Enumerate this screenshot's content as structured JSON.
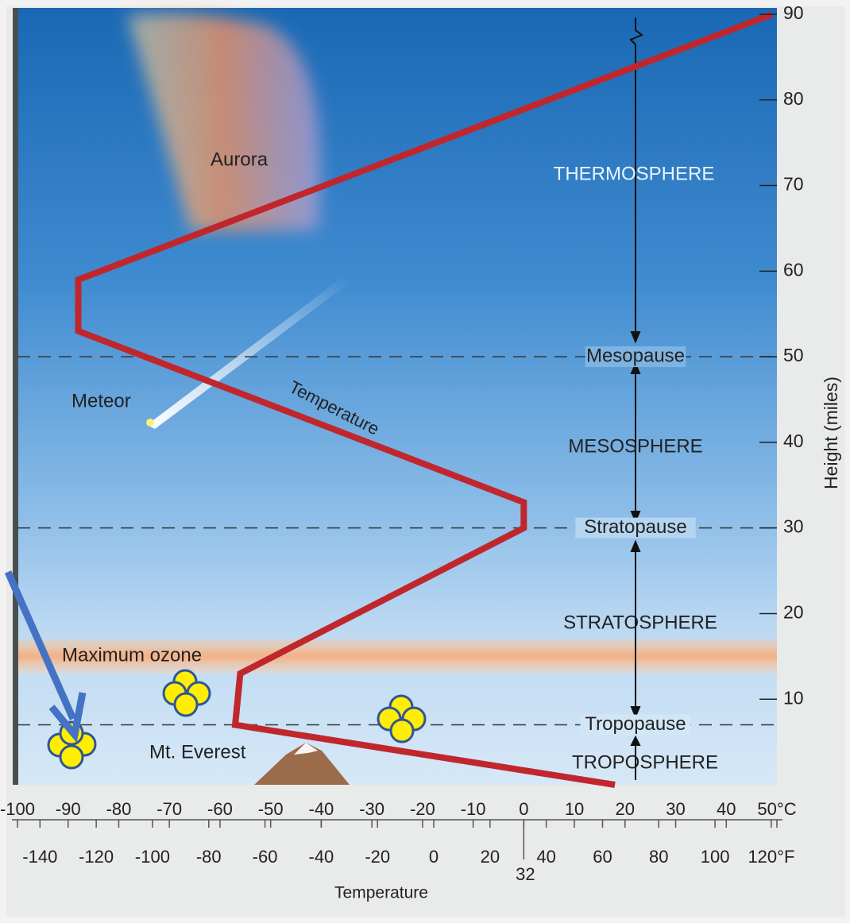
{
  "chart_data": {
    "type": "line",
    "x_label": "Temperature",
    "y_label": "Height (miles)",
    "xlim": [
      -100,
      50
    ],
    "xticks": [
      -100,
      -90,
      -80,
      -70,
      -60,
      -50,
      -40,
      -30,
      -20,
      -10,
      0,
      10,
      20,
      30,
      40,
      {
        "value": 50,
        "label": "50°C"
      }
    ],
    "x2lim": [
      -148,
      122
    ],
    "x2ticks": [
      -140,
      -120,
      -100,
      -80,
      -60,
      -40,
      -20,
      0,
      20,
      40,
      60,
      80,
      100,
      {
        "value": 120,
        "label": "120°F"
      },
      32
    ],
    "ylim": [
      0,
      90
    ],
    "yticks": [
      10,
      20,
      30,
      40,
      50,
      60,
      70,
      80,
      90
    ],
    "series": [
      {
        "name": "Temperature",
        "color": "#c0272d",
        "x": [
          18,
          -57,
          -56,
          0,
          0,
          -88,
          -88,
          49
        ],
        "values": [
          0,
          7,
          13,
          30,
          33,
          53,
          59,
          90
        ]
      }
    ],
    "regions": [
      "THERMOSPHERE",
      "MESOSPHERE",
      "STRATOSPHERE",
      "TROPOSPHERE"
    ],
    "boundaries": [
      {
        "label": "Mesopause",
        "height": 50
      },
      {
        "label": "Stratopause",
        "height": 30
      },
      {
        "label": "Tropopause",
        "height": 7
      }
    ],
    "ozone_band": {
      "label": "Maximum ozone",
      "range": [
        13,
        17
      ]
    },
    "annotations": [
      "Aurora",
      "Meteor",
      "Mt. Everest"
    ]
  }
}
